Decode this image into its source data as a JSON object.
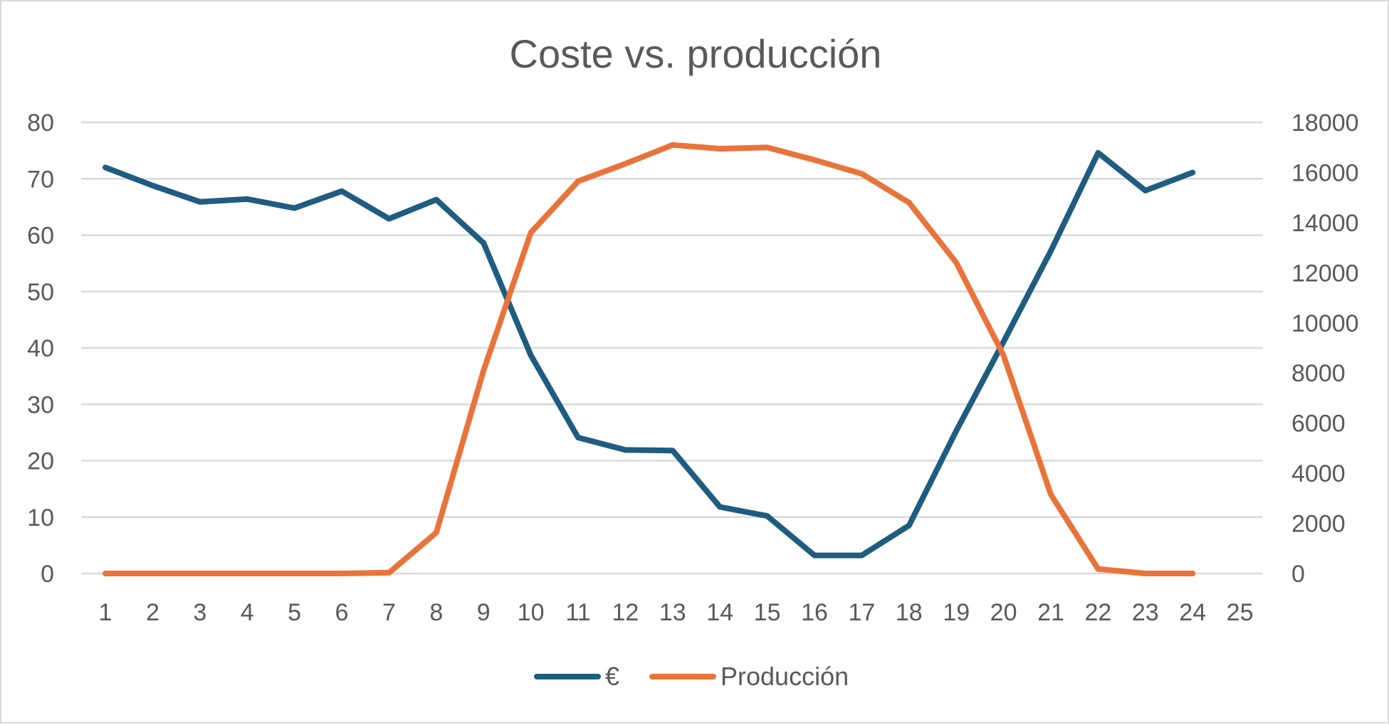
{
  "chart_data": {
    "type": "line",
    "title": "Coste vs. producción",
    "xlabel": "",
    "ylabel": "",
    "y2label": "",
    "x": [
      1,
      2,
      3,
      4,
      5,
      6,
      7,
      8,
      9,
      10,
      11,
      12,
      13,
      14,
      15,
      16,
      17,
      18,
      19,
      20,
      21,
      22,
      23,
      24
    ],
    "x_ticks": [
      "1",
      "2",
      "3",
      "4",
      "5",
      "6",
      "7",
      "8",
      "9",
      "10",
      "11",
      "12",
      "13",
      "14",
      "15",
      "16",
      "17",
      "18",
      "19",
      "20",
      "21",
      "22",
      "23",
      "24",
      "25"
    ],
    "xlim": [
      1,
      25
    ],
    "ylim": [
      0,
      80
    ],
    "y_ticks": [
      "0",
      "10",
      "20",
      "30",
      "40",
      "50",
      "60",
      "70",
      "80"
    ],
    "y2lim": [
      0,
      18000
    ],
    "y2_ticks": [
      "0",
      "2000",
      "4000",
      "6000",
      "8000",
      "10000",
      "12000",
      "14000",
      "16000",
      "18000"
    ],
    "grid": true,
    "legend_position": "bottom",
    "series": [
      {
        "name": "€",
        "axis": "left",
        "color": "#1f5c80",
        "values": [
          72,
          68.8,
          65.9,
          66.4,
          64.8,
          67.8,
          62.9,
          66.3,
          58.6,
          38.7,
          24.1,
          21.9,
          21.8,
          11.8,
          10.2,
          3.2,
          3.2,
          8.5,
          25.3,
          41.1,
          57.2,
          74.6,
          67.9,
          71.1
        ]
      },
      {
        "name": "Producción",
        "axis": "right",
        "color": "#e8743b",
        "values": [
          0,
          0,
          0,
          0,
          0,
          0,
          30,
          1630,
          8100,
          13600,
          15650,
          16350,
          17100,
          16950,
          17000,
          16500,
          15950,
          14800,
          12400,
          8700,
          3150,
          180,
          0,
          0
        ]
      }
    ]
  }
}
